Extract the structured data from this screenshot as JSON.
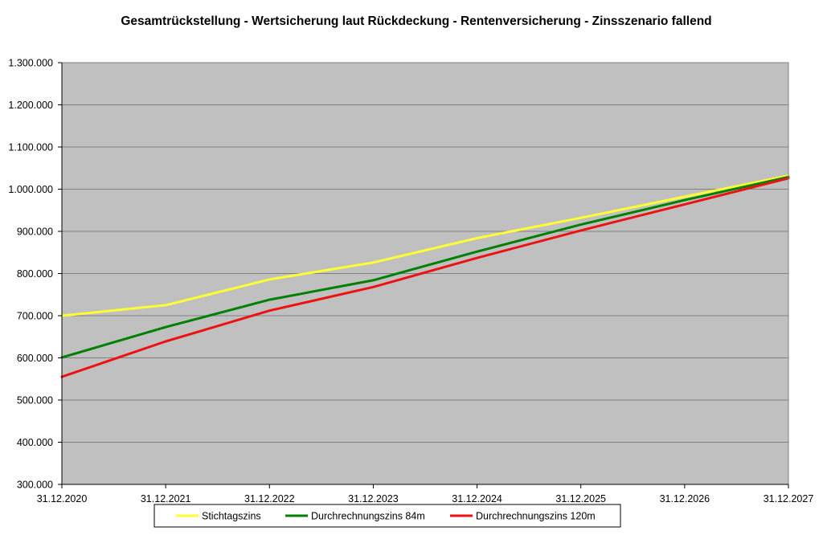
{
  "chart_data": {
    "type": "line",
    "title": "Gesamtrückstellung - Wertsicherung laut Rückdeckung - Rentenversicherung - Zinsszenario fallend",
    "xlabel": "",
    "ylabel": "",
    "categories": [
      "31.12.2020",
      "31.12.2021",
      "31.12.2022",
      "31.12.2023",
      "31.12.2024",
      "31.12.2025",
      "31.12.2026",
      "31.12.2027"
    ],
    "ylim": [
      300000,
      1300000
    ],
    "y_ticks": [
      300000,
      400000,
      500000,
      600000,
      700000,
      800000,
      900000,
      1000000,
      1100000,
      1200000,
      1300000
    ],
    "y_tick_labels": [
      "300.000",
      "400.000",
      "500.000",
      "600.000",
      "700.000",
      "800.000",
      "900.000",
      "1.000.000",
      "1.100.000",
      "1.200.000",
      "1.300.000"
    ],
    "grid": true,
    "plot_background": "#c0c0c0",
    "legend_position": "bottom",
    "series": [
      {
        "name": "Stichtagszins",
        "color": "#ffff33",
        "values": [
          700000,
          725000,
          786000,
          826000,
          884000,
          932000,
          982000,
          1032000
        ]
      },
      {
        "name": "Durchrechnungszins 84m",
        "color": "#008000",
        "values": [
          601000,
          673000,
          738000,
          784000,
          852000,
          916000,
          974000,
          1029000
        ]
      },
      {
        "name": "Durchrechnungszins 120m",
        "color": "#ee1111",
        "values": [
          555000,
          639000,
          712000,
          768000,
          837000,
          902000,
          964000,
          1026000
        ]
      }
    ]
  }
}
